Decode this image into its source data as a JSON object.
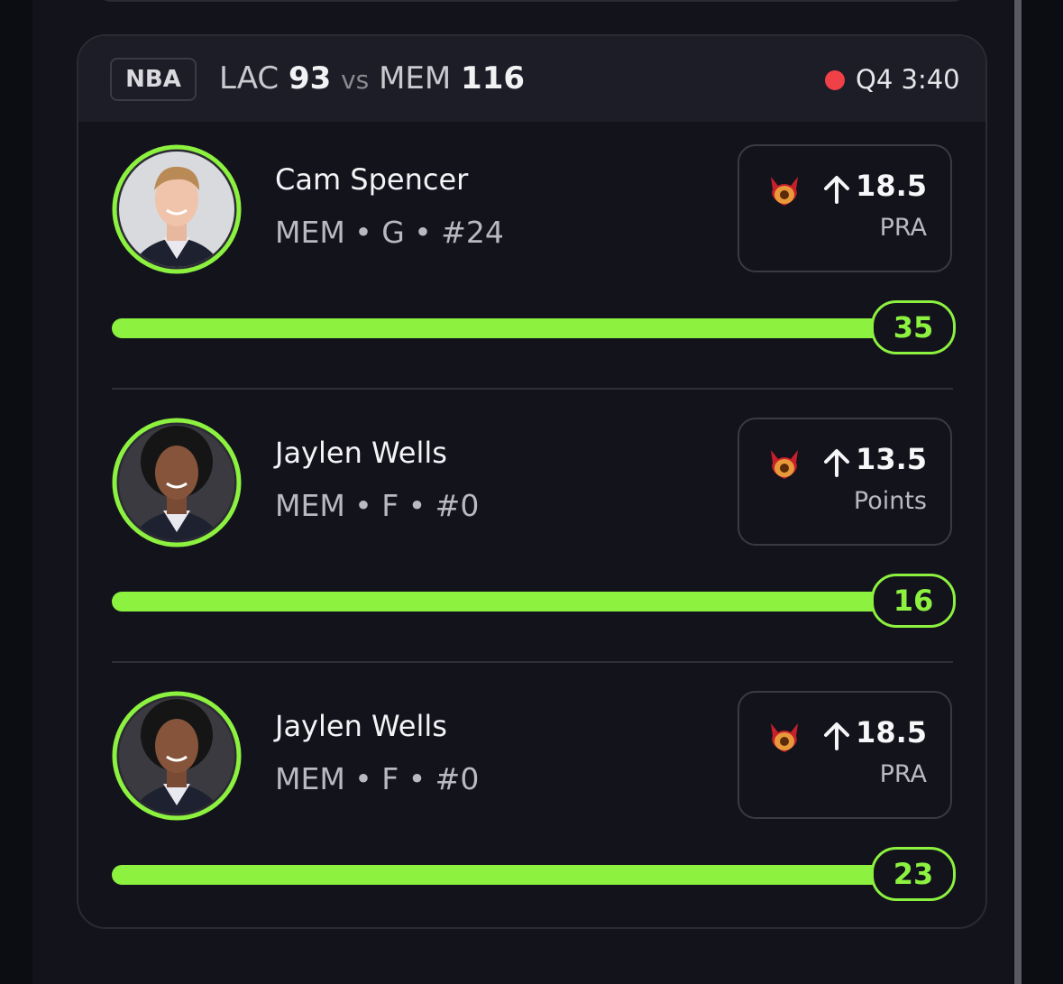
{
  "header": {
    "league": "NBA",
    "team1": "LAC",
    "score1": "93",
    "vs": "vs",
    "team2": "MEM",
    "score2": "116",
    "status": "Q4 3:40"
  },
  "players": [
    {
      "name": "Cam Spencer",
      "meta": "MEM • G • #24",
      "line": "18.5",
      "stat": "PRA",
      "result": "35"
    },
    {
      "name": "Jaylen Wells",
      "meta": "MEM • F • #0",
      "line": "13.5",
      "stat": "Points",
      "result": "16"
    },
    {
      "name": "Jaylen Wells",
      "meta": "MEM • F • #0",
      "line": "18.5",
      "stat": "PRA",
      "result": "23"
    }
  ]
}
